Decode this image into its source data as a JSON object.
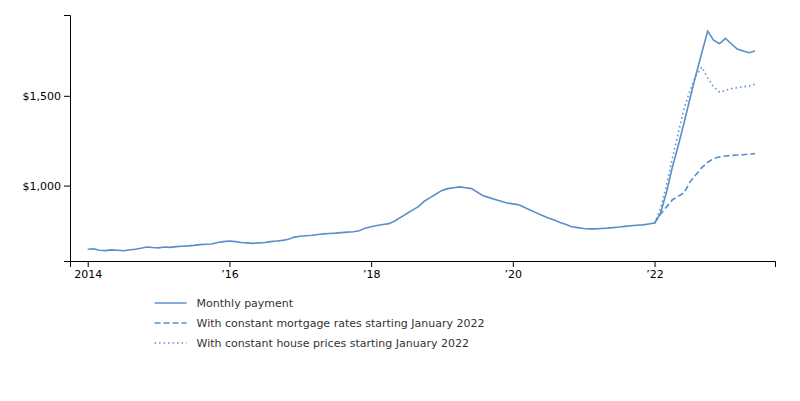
{
  "chart_data": {
    "type": "line",
    "xlim": [
      2013.75,
      2023.7
    ],
    "xticks": [
      2014,
      {
        "value": 2016,
        "label": "’16"
      },
      {
        "value": 2018,
        "label": "’18"
      },
      {
        "value": 2020,
        "label": "’20"
      },
      {
        "value": 2022,
        "label": "’22"
      }
    ],
    "ylim": [
      580,
      1950
    ],
    "yticks": [
      {
        "value": 1000,
        "label": "$1,000"
      },
      {
        "value": 1500,
        "label": "$1,500"
      }
    ],
    "grid": false,
    "legend": "bottom",
    "series": [
      {
        "name": "Monthly payment",
        "color": "#5b8ec9",
        "line_style": "solid",
        "x": [
          2014.0,
          2014.083,
          2014.167,
          2014.25,
          2014.333,
          2014.417,
          2014.5,
          2014.583,
          2014.667,
          2014.75,
          2014.833,
          2014.917,
          2015.0,
          2015.083,
          2015.167,
          2015.25,
          2015.333,
          2015.417,
          2015.5,
          2015.583,
          2015.667,
          2015.75,
          2015.833,
          2015.917,
          2016.0,
          2016.083,
          2016.167,
          2016.25,
          2016.333,
          2016.417,
          2016.5,
          2016.583,
          2016.667,
          2016.75,
          2016.833,
          2016.917,
          2017.0,
          2017.083,
          2017.167,
          2017.25,
          2017.333,
          2017.417,
          2017.5,
          2017.583,
          2017.667,
          2017.75,
          2017.833,
          2017.917,
          2018.0,
          2018.083,
          2018.167,
          2018.25,
          2018.333,
          2018.417,
          2018.5,
          2018.583,
          2018.667,
          2018.75,
          2018.833,
          2018.917,
          2019.0,
          2019.083,
          2019.167,
          2019.25,
          2019.333,
          2019.417,
          2019.5,
          2019.583,
          2019.667,
          2019.75,
          2019.833,
          2019.917,
          2020.0,
          2020.083,
          2020.167,
          2020.25,
          2020.333,
          2020.417,
          2020.5,
          2020.583,
          2020.667,
          2020.75,
          2020.833,
          2020.917,
          2021.0,
          2021.083,
          2021.167,
          2021.25,
          2021.333,
          2021.417,
          2021.5,
          2021.583,
          2021.667,
          2021.75,
          2021.833,
          2021.917,
          2022.0,
          2022.083,
          2022.167,
          2022.25,
          2022.333,
          2022.417,
          2022.5,
          2022.583,
          2022.667,
          2022.75,
          2022.833,
          2022.917,
          2023.0,
          2023.083,
          2023.167,
          2023.25,
          2023.333,
          2023.417
        ],
        "values": [
          645,
          648,
          640,
          638,
          642,
          640,
          637,
          641,
          645,
          651,
          658,
          655,
          653,
          658,
          656,
          660,
          662,
          664,
          667,
          671,
          673,
          675,
          683,
          688,
          691,
          688,
          683,
          681,
          678,
          681,
          683,
          688,
          691,
          695,
          701,
          713,
          718,
          721,
          723,
          728,
          731,
          733,
          735,
          738,
          741,
          743,
          748,
          763,
          771,
          778,
          783,
          788,
          803,
          823,
          843,
          863,
          883,
          913,
          933,
          953,
          973,
          983,
          988,
          993,
          988,
          983,
          963,
          943,
          933,
          923,
          913,
          903,
          898,
          893,
          878,
          863,
          848,
          833,
          820,
          808,
          795,
          783,
          771,
          766,
          761,
          759,
          759,
          761,
          763,
          766,
          769,
          773,
          776,
          779,
          781,
          786,
          791,
          845,
          960,
          1100,
          1220,
          1350,
          1485,
          1615,
          1740,
          1860,
          1810,
          1790,
          1820,
          1790,
          1760,
          1750,
          1740,
          1750
        ]
      },
      {
        "name": "With constant mortgage rates starting January 2022",
        "color": "#5b8ec9",
        "line_style": "dashed",
        "x": [
          2022.0,
          2022.083,
          2022.167,
          2022.25,
          2022.333,
          2022.417,
          2022.5,
          2022.583,
          2022.667,
          2022.75,
          2022.833,
          2022.917,
          2023.0,
          2023.083,
          2023.167,
          2023.25,
          2023.333,
          2023.417
        ],
        "values": [
          791,
          840,
          880,
          920,
          940,
          960,
          1020,
          1060,
          1100,
          1130,
          1150,
          1160,
          1165,
          1168,
          1170,
          1172,
          1175,
          1178
        ]
      },
      {
        "name": "With constant house prices starting January 2022",
        "color": "#5b8ec9",
        "line_style": "dotted",
        "x": [
          2022.0,
          2022.083,
          2022.167,
          2022.25,
          2022.333,
          2022.417,
          2022.5,
          2022.583,
          2022.667,
          2022.75,
          2022.833,
          2022.917,
          2023.0,
          2023.083,
          2023.167,
          2023.25,
          2023.333,
          2023.417
        ],
        "values": [
          791,
          870,
          1000,
          1150,
          1290,
          1430,
          1530,
          1610,
          1660,
          1600,
          1550,
          1520,
          1530,
          1540,
          1545,
          1550,
          1555,
          1565
        ]
      }
    ]
  }
}
